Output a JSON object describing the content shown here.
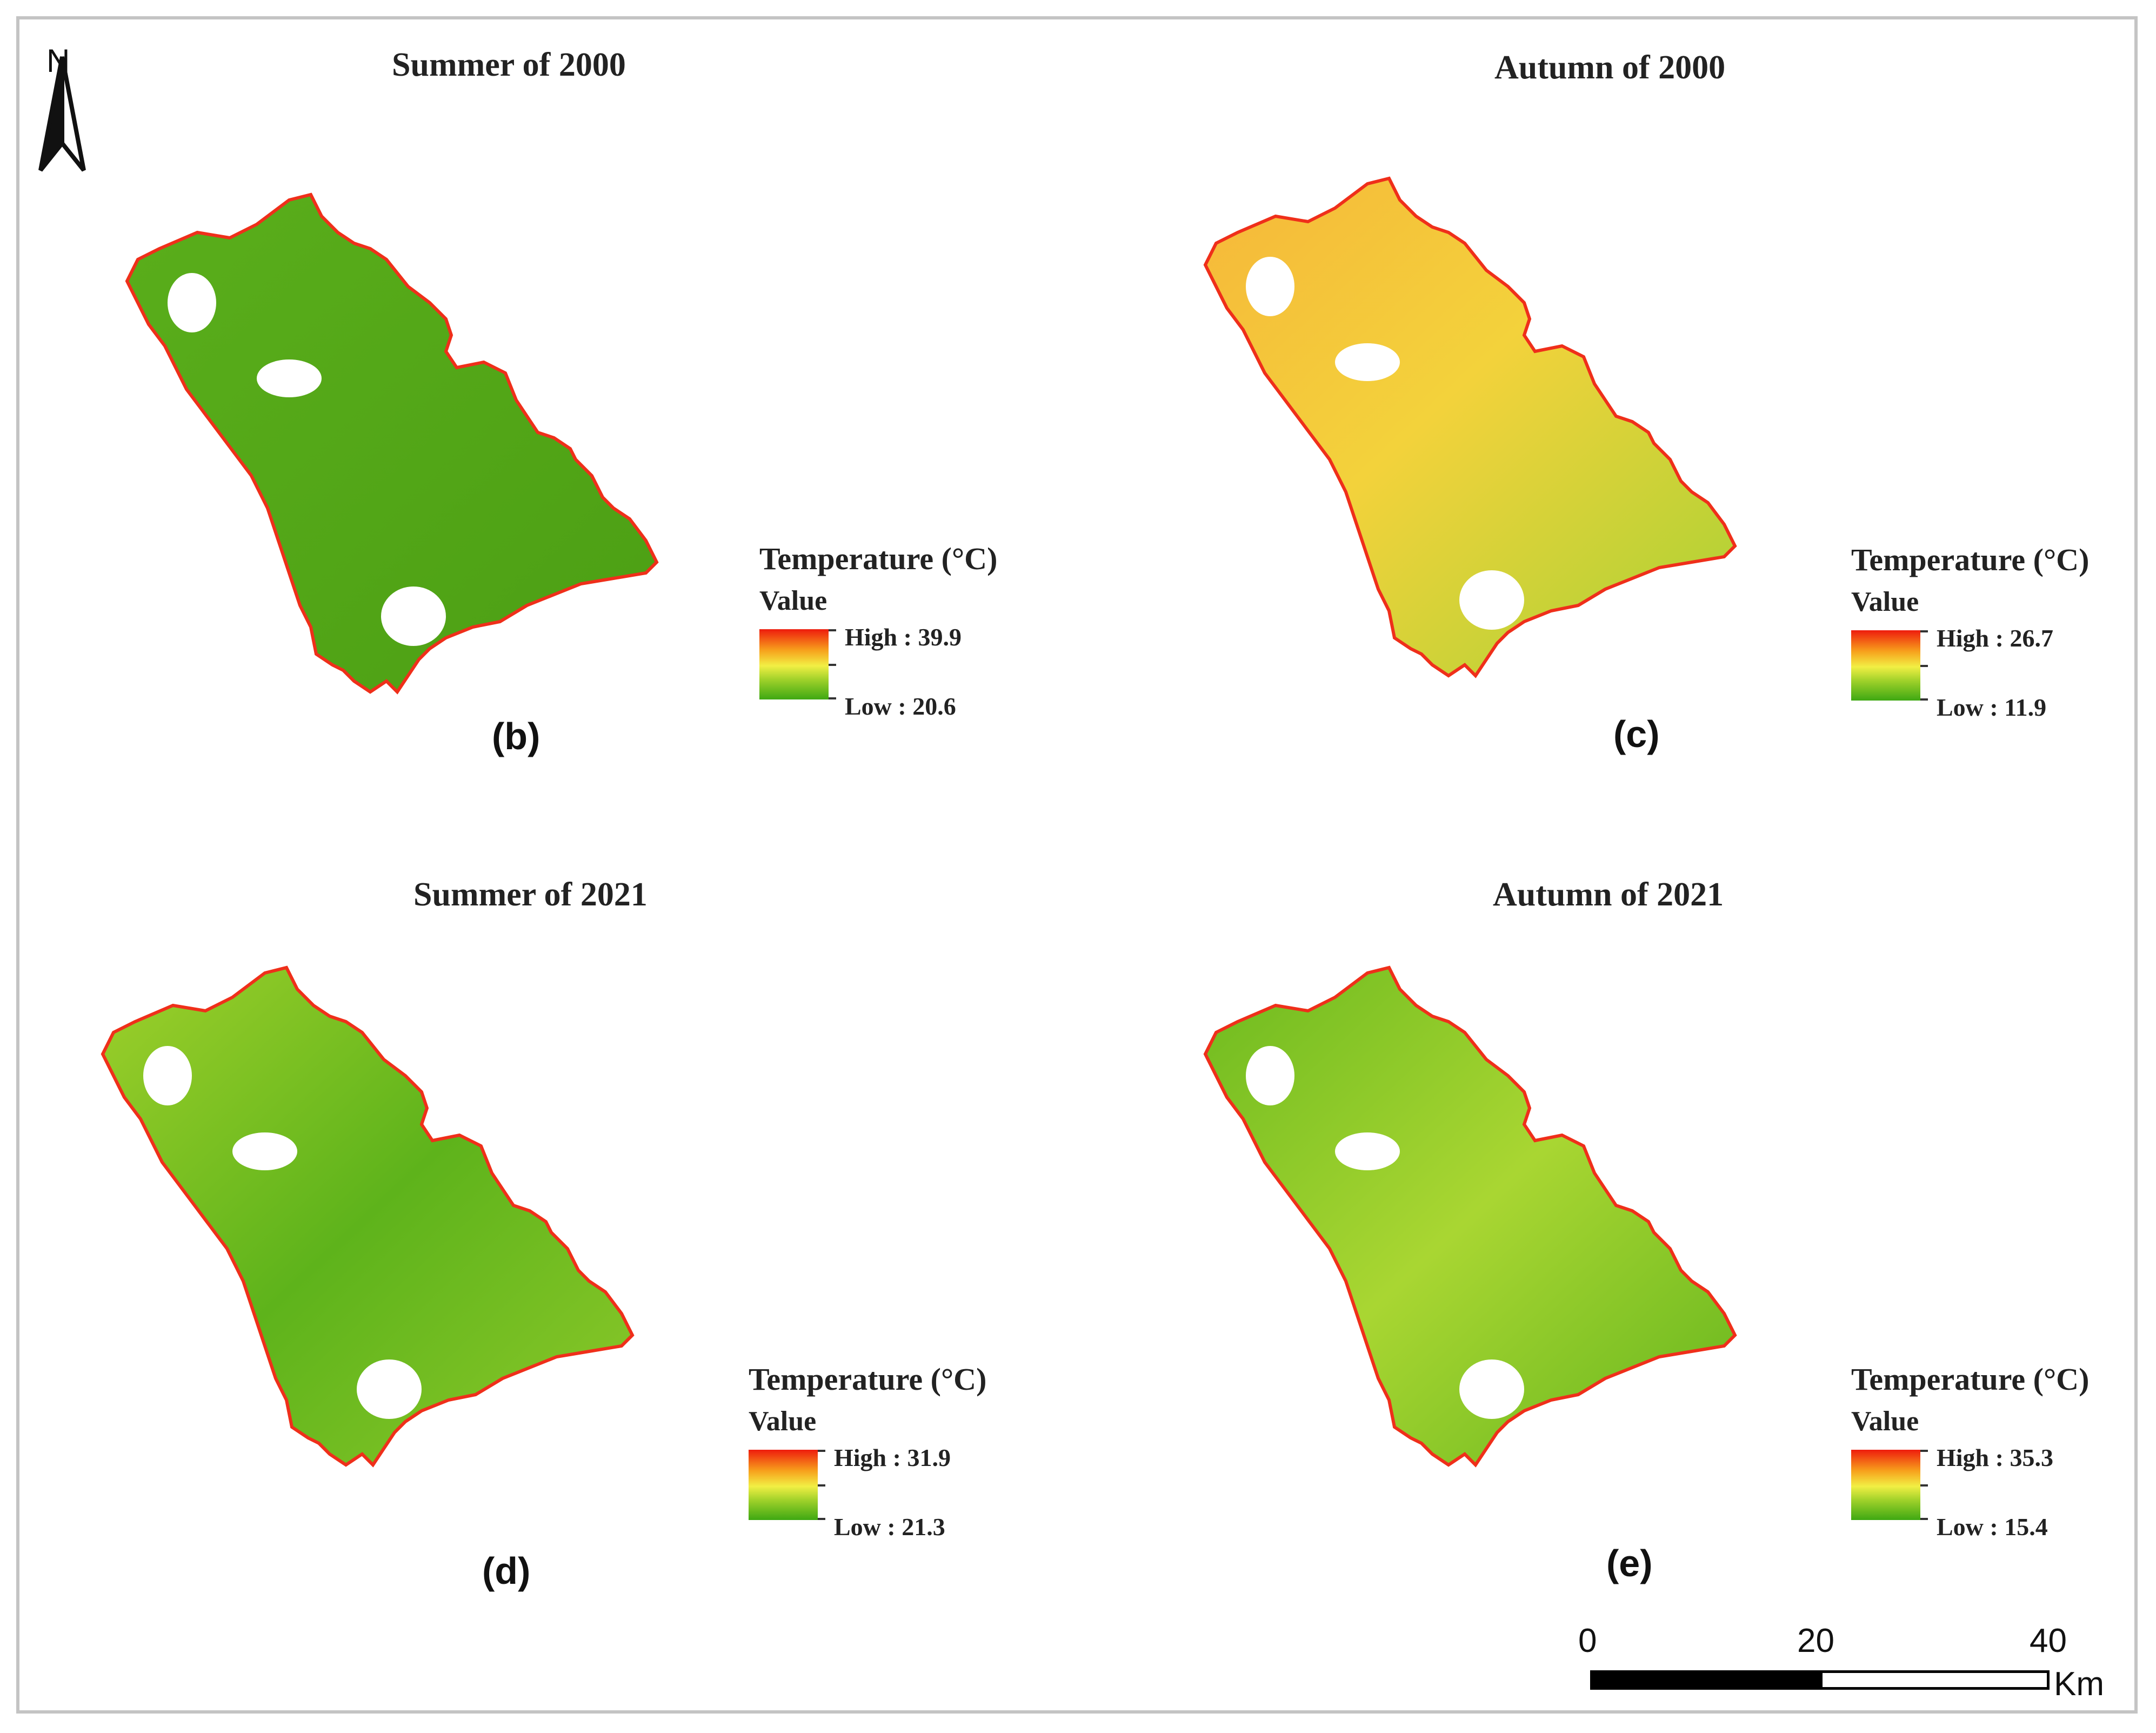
{
  "figure": {
    "north_label": "N",
    "scale_bar": {
      "ticks": [
        "0",
        "20",
        "40"
      ],
      "unit": "Km"
    }
  },
  "panels": [
    {
      "id": "b",
      "title": "Summer of 2000",
      "label": "(b)",
      "legend": {
        "title": "Temperature (°C)",
        "subtitle": "Value",
        "high": "High : 39.9",
        "low": "Low : 20.6"
      },
      "colors": {
        "base": "#52a516",
        "mid": "#5fb11d",
        "edge": "#ef2f1a"
      }
    },
    {
      "id": "c",
      "title": "Autumn of 2000",
      "label": "(c)",
      "legend": {
        "title": "Temperature (°C)",
        "subtitle": "Value",
        "high": "High : 26.7",
        "low": "Low : 11.9"
      },
      "colors": {
        "base": "#d4e439",
        "mid": "#f3c437",
        "edge": "#ef2f1a"
      }
    },
    {
      "id": "d",
      "title": "Summer of 2021",
      "label": "(d)",
      "legend": {
        "title": "Temperature (°C)",
        "subtitle": "Value",
        "high": "High : 31.9",
        "low": "Low : 21.3"
      },
      "colors": {
        "base": "#63b51e",
        "mid": "#94cd2b",
        "edge": "#ef2f1a"
      }
    },
    {
      "id": "e",
      "title": "Autumn of 2021",
      "label": "(e)",
      "legend": {
        "title": "Temperature (°C)",
        "subtitle": "Value",
        "high": "High : 35.3",
        "low": "Low : 15.4"
      },
      "colors": {
        "base": "#7dc222",
        "mid": "#a8d530",
        "edge": "#ef2f1a"
      }
    }
  ]
}
